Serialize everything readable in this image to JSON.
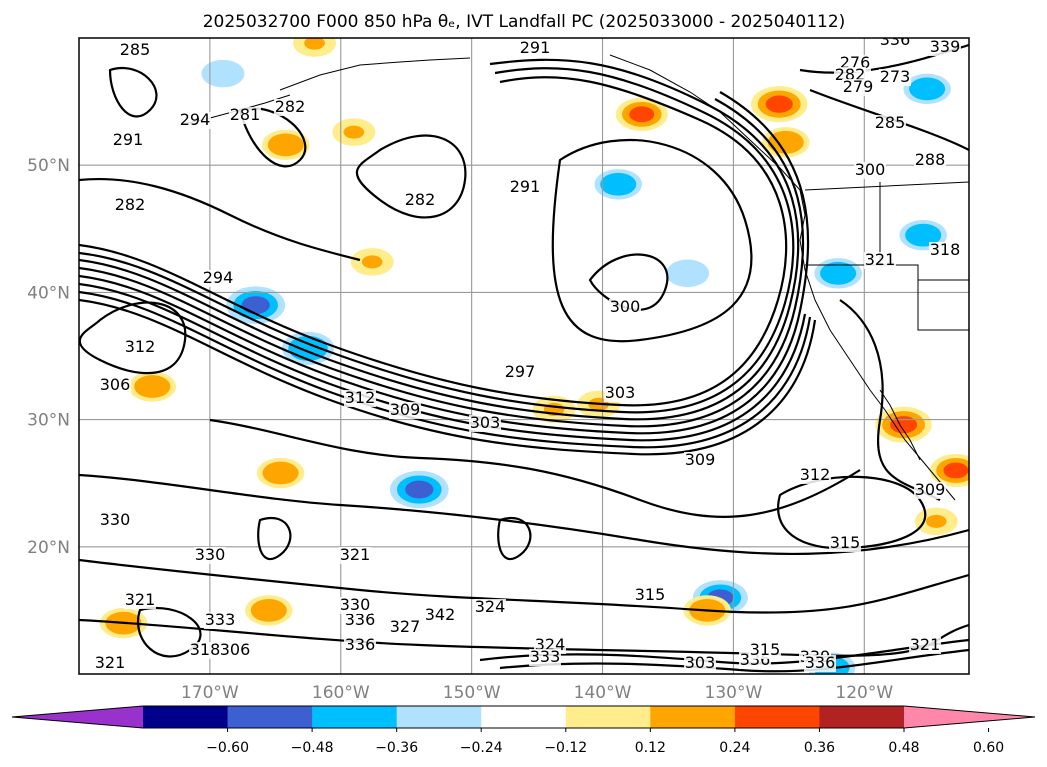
{
  "chart_data": {
    "type": "heatmap",
    "title": "2025032700 F000 850 hPa θₑ, IVT Landfall PC (2025033000 - 2025040112)",
    "map": {
      "lon_range": [
        -180,
        -112
      ],
      "lat_range": [
        10,
        60
      ],
      "longitude_ticks": [
        "170°W",
        "160°W",
        "150°W",
        "140°W",
        "130°W",
        "120°W"
      ],
      "latitude_ticks": [
        "50°N",
        "40°N",
        "30°N",
        "20°N"
      ],
      "gridlines": true,
      "coastlines": true
    },
    "contours": {
      "variable": "850 hPa θe",
      "labels": [
        "285",
        "291",
        "294",
        "281",
        "282",
        "291",
        "282",
        "282",
        "291",
        "300",
        "297",
        "303",
        "303",
        "312",
        "309",
        "294",
        "312",
        "306",
        "321",
        "318",
        "309",
        "312",
        "315",
        "309",
        "330",
        "330",
        "324",
        "321",
        "321",
        "333",
        "336",
        "321",
        "330",
        "336",
        "342",
        "327",
        "324",
        "333",
        "336",
        "339",
        "336",
        "339",
        "276",
        "273",
        "282",
        "279",
        "285",
        "288",
        "300",
        "306",
        "315",
        "318",
        "321",
        "315",
        "303",
        "336"
      ]
    },
    "colorbar": {
      "ticks": [
        "−0.60",
        "−0.48",
        "−0.36",
        "−0.24",
        "−0.12",
        "0.12",
        "0.24",
        "0.36",
        "0.48",
        "0.60"
      ],
      "colors": [
        "#9932cc",
        "#00008b",
        "#3c5fd2",
        "#00bfff",
        "#b0e2ff",
        "#ffffff",
        "#ffec8b",
        "#ffa500",
        "#ff4500",
        "#b22222",
        "#ff88aa"
      ],
      "extend": "both"
    },
    "shaded_blobs": [
      {
        "lon": -166.5,
        "lat": 39.0,
        "value": -0.45
      },
      {
        "lon": -162.5,
        "lat": 35.6,
        "value": -0.36
      },
      {
        "lon": -154.0,
        "lat": 24.5,
        "value": -0.45
      },
      {
        "lon": -169.0,
        "lat": 57.2,
        "value": -0.24
      },
      {
        "lon": -138.8,
        "lat": 48.5,
        "value": -0.3
      },
      {
        "lon": -133.5,
        "lat": 41.5,
        "value": -0.24
      },
      {
        "lon": -131.0,
        "lat": 16.0,
        "value": -0.4
      },
      {
        "lon": -122.0,
        "lat": 41.5,
        "value": -0.3
      },
      {
        "lon": -115.2,
        "lat": 56.0,
        "value": -0.3
      },
      {
        "lon": -115.5,
        "lat": 44.5,
        "value": -0.3
      },
      {
        "lon": -122.5,
        "lat": 10.5,
        "value": -0.3
      },
      {
        "lon": -126.5,
        "lat": 54.8,
        "value": 0.42
      },
      {
        "lon": -117.0,
        "lat": 29.6,
        "value": 0.42
      },
      {
        "lon": -113.0,
        "lat": 26.0,
        "value": 0.36
      },
      {
        "lon": -137.0,
        "lat": 54.0,
        "value": 0.36
      },
      {
        "lon": -159.0,
        "lat": 52.6,
        "value": 0.24
      },
      {
        "lon": -164.2,
        "lat": 51.6,
        "value": 0.3
      },
      {
        "lon": -157.6,
        "lat": 42.4,
        "value": 0.24
      },
      {
        "lon": -176.6,
        "lat": 14.0,
        "value": 0.3
      },
      {
        "lon": -174.4,
        "lat": 32.6,
        "value": 0.3
      },
      {
        "lon": -164.6,
        "lat": 25.8,
        "value": 0.3
      },
      {
        "lon": -162.0,
        "lat": 59.6,
        "value": 0.24
      },
      {
        "lon": -126.0,
        "lat": 51.8,
        "value": 0.3
      },
      {
        "lon": -143.7,
        "lat": 30.8,
        "value": 0.24
      },
      {
        "lon": -140.3,
        "lat": 31.2,
        "value": 0.24
      },
      {
        "lon": -132.0,
        "lat": 15.0,
        "value": 0.3
      },
      {
        "lon": -114.5,
        "lat": 22.0,
        "value": 0.24
      },
      {
        "lon": -165.5,
        "lat": 15.0,
        "value": 0.3
      }
    ]
  }
}
